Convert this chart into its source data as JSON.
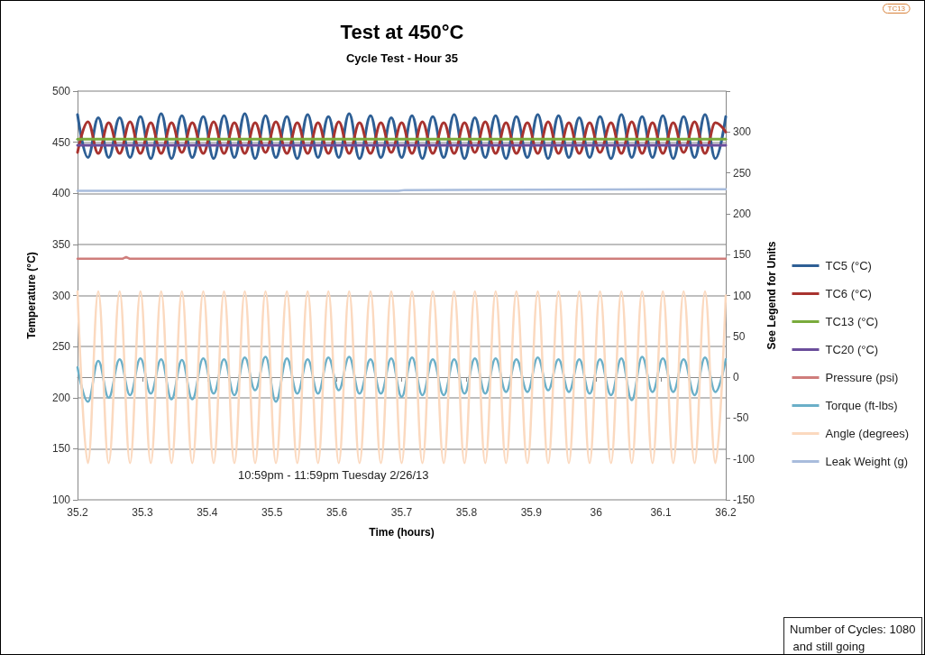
{
  "chart_data": {
    "type": "line",
    "title": "Test at 450°C",
    "subtitle": "Cycle Test - Hour 35",
    "xlabel": "Time (hours)",
    "ylabel": "Temperature (°C)",
    "y2label": "See Legend for Units",
    "x": [
      35.2,
      35.216,
      35.232,
      35.248,
      35.265,
      35.281,
      35.297,
      35.313,
      35.329,
      35.345,
      35.361,
      35.377,
      35.394,
      35.41,
      35.426,
      35.442,
      35.458,
      35.474,
      35.49,
      35.506,
      35.523,
      35.539,
      35.555,
      35.571,
      35.587,
      35.603,
      35.619,
      35.635,
      35.652,
      35.668,
      35.684,
      35.7,
      35.716,
      35.732,
      35.748,
      35.765,
      35.781,
      35.797,
      35.813,
      35.829,
      35.845,
      35.861,
      35.877,
      35.894,
      35.91,
      35.926,
      35.942,
      35.958,
      35.974,
      35.99,
      36.006,
      36.023,
      36.039,
      36.055,
      36.071,
      36.087,
      36.103,
      36.119,
      36.135,
      36.152,
      36.168,
      36.184,
      36.2
    ],
    "series": [
      {
        "name": "TC5 (°C)",
        "color": "#2e5f95",
        "values": [
          477,
          435,
          474,
          435,
          474,
          435,
          475,
          434,
          478,
          434,
          476,
          435,
          475,
          434,
          476,
          435,
          478,
          434,
          476,
          435,
          475,
          434,
          477,
          435,
          475,
          435,
          478,
          434,
          476,
          435,
          474,
          435,
          476,
          434,
          475,
          435,
          477,
          434,
          474,
          435,
          476,
          434,
          475,
          435,
          477,
          434,
          476,
          435,
          474,
          435,
          475,
          434,
          477,
          435,
          475,
          435,
          476,
          434,
          475,
          435,
          477,
          434,
          475
        ]
      },
      {
        "name": "TC6 (°C)",
        "color": "#a8332f",
        "values": [
          440,
          470,
          439,
          469,
          439,
          470,
          439,
          469,
          439,
          469,
          440,
          469,
          439,
          470,
          439,
          469,
          439,
          469,
          440,
          470,
          439,
          469,
          439,
          469,
          439,
          470,
          439,
          469,
          439,
          469,
          440,
          469,
          439,
          470,
          439,
          469,
          439,
          469,
          440,
          470,
          439,
          469,
          439,
          469,
          439,
          470,
          439,
          469,
          439,
          469,
          440,
          469,
          439,
          470,
          439,
          469,
          439,
          469,
          440,
          470,
          439,
          469,
          460
        ]
      },
      {
        "name": "TC13 (°C)",
        "color": "#7aab3c",
        "x": [
          35.2,
          36.2
        ],
        "values": [
          453,
          453
        ]
      },
      {
        "name": "TC20 (°C)",
        "color": "#6b4e9b",
        "x": [
          35.2,
          36.2
        ],
        "values": [
          447,
          447
        ]
      },
      {
        "name": "Pressure (psi)",
        "color": "#cf7d7b",
        "axis": "y2",
        "x": [
          35.2,
          35.27,
          35.275,
          35.28,
          36.2
        ],
        "values": [
          145,
          145,
          147,
          145,
          145
        ]
      },
      {
        "name": "Torque (ft-lbs)",
        "color": "#6aafc8",
        "axis": "y2",
        "values": [
          12,
          -30,
          20,
          -25,
          22,
          -22,
          23,
          -20,
          22,
          -27,
          21,
          -27,
          23,
          -20,
          22,
          -22,
          24,
          -16,
          25,
          -30,
          23,
          -20,
          22,
          -20,
          24,
          -16,
          25,
          -20,
          22,
          -20,
          23,
          -24,
          24,
          -22,
          22,
          -22,
          22,
          -20,
          23,
          -20,
          23,
          -18,
          22,
          -18,
          24,
          -16,
          22,
          -18,
          22,
          -20,
          22,
          -22,
          23,
          -28,
          25,
          -18,
          23,
          -18,
          22,
          -22,
          24,
          -18,
          22
        ]
      },
      {
        "name": "Angle (degrees)",
        "color": "#fbd9bf",
        "axis": "y2",
        "values": [
          105,
          -105,
          105,
          -105,
          105,
          -105,
          105,
          -105,
          105,
          -105,
          105,
          -105,
          105,
          -105,
          105,
          -105,
          105,
          -105,
          105,
          -105,
          105,
          -105,
          105,
          -105,
          105,
          -105,
          105,
          -105,
          105,
          -105,
          105,
          -105,
          105,
          -105,
          105,
          -105,
          105,
          -105,
          105,
          -105,
          105,
          -105,
          105,
          -105,
          105,
          -105,
          105,
          -105,
          105,
          -105,
          105,
          -105,
          105,
          -105,
          105,
          -105,
          105,
          -105,
          105,
          -105,
          105,
          -105,
          100
        ]
      },
      {
        "name": "Leak Weight (g)",
        "color": "#a8bcdc",
        "axis": "y2",
        "x": [
          35.2,
          35.695,
          35.705,
          36.2
        ],
        "values": [
          228,
          228,
          229,
          230
        ]
      }
    ],
    "xlim": [
      35.2,
      36.2
    ],
    "xticks": [
      35.2,
      35.3,
      35.4,
      35.5,
      35.6,
      35.7,
      35.8,
      35.9,
      36,
      36.1,
      36.2
    ],
    "ylim": [
      100,
      500
    ],
    "yticks": [
      100,
      150,
      200,
      250,
      300,
      350,
      400,
      450,
      500
    ],
    "y2lim": [
      -150,
      350
    ],
    "y2ticks": [
      -150,
      -100,
      -50,
      0,
      50,
      100,
      150,
      200,
      250,
      300,
      {
        "value": 350,
        "label": null
      }
    ],
    "grid": "y",
    "legend": "right",
    "marker": "none",
    "line_style": "solid",
    "annotations": [
      "10:59pm - 11:59pm Tuesday 2/26/13",
      "Number of Cycles: 1080 and still going",
      "TC13"
    ]
  }
}
